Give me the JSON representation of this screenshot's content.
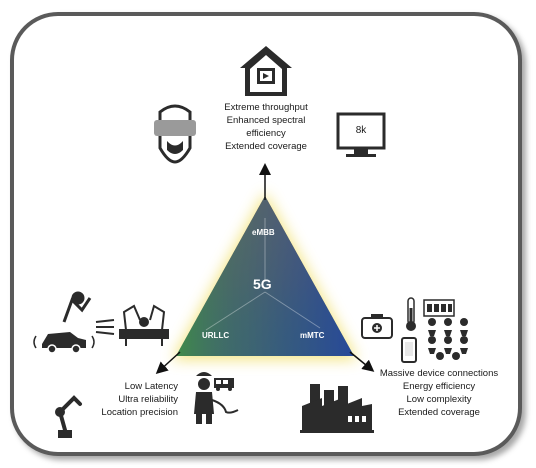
{
  "core": {
    "label": "5G"
  },
  "vertices": {
    "embb": "eMBB",
    "urllc": "URLLC",
    "mmtc": "mMTC"
  },
  "embb_features": [
    "Extreme throughput",
    "Enhanced spectral",
    "efficiency",
    "Extended coverage"
  ],
  "urllc_features": [
    "Low Latency",
    "Ultra reliability",
    "Location precision"
  ],
  "mmtc_features": [
    "Massive device connections",
    "Energy efficiency",
    "Low complexity",
    "Extended coverage"
  ],
  "monitor": {
    "label": "8k"
  },
  "colors": {
    "frame": "#5a5a5a",
    "embb": "#d76a2c",
    "urllc": "#3e8a4a",
    "mmtc": "#2a4d8a",
    "glow": "#f3e37a",
    "icon": "#2b2b2b"
  },
  "icons": [
    "smart-home-icon",
    "vr-headset-icon",
    "monitor-icon",
    "robot-arm-icon",
    "surgical-robot-icon",
    "connected-car-icon",
    "firefighter-icon",
    "fire-truck-icon",
    "industrial-robot-icon",
    "medical-kit-icon",
    "thermometer-icon",
    "meter-icon",
    "smartphone-icon",
    "sensor-cluster-icon",
    "factory-icon"
  ]
}
